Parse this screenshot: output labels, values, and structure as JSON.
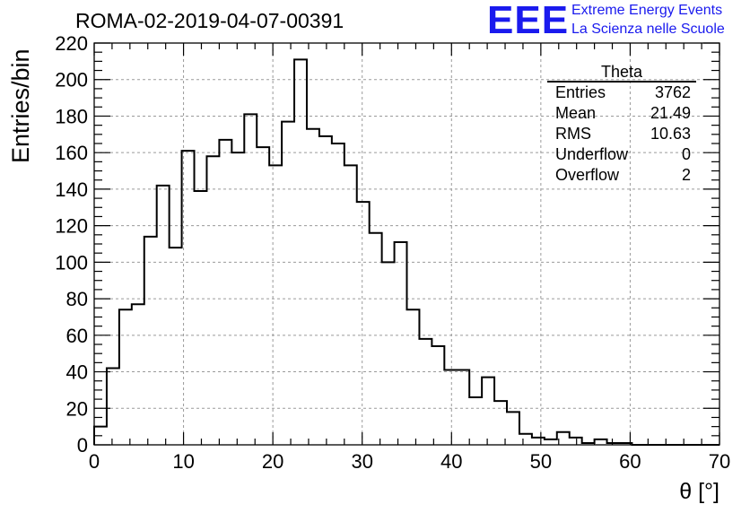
{
  "title": "ROMA-02-2019-04-07-00391",
  "logo": {
    "mark": "EEE",
    "line1": "Extreme Energy Events",
    "line2": "La Scienza nelle Scuole",
    "color": "#1a1aee"
  },
  "stats": {
    "name": "Theta",
    "rows": [
      {
        "label": "Entries",
        "value": "3762"
      },
      {
        "label": "Mean",
        "value": "21.49"
      },
      {
        "label": "RMS",
        "value": "10.63"
      },
      {
        "label": "Underflow",
        "value": "0"
      },
      {
        "label": "Overflow",
        "value": "2"
      }
    ]
  },
  "chart_data": {
    "type": "bar",
    "histogram": true,
    "xlabel": "θ [°]",
    "ylabel": "Entries/bin",
    "xlim": [
      0,
      70
    ],
    "ylim": [
      0,
      220
    ],
    "grid": true,
    "bin_width": 1.4,
    "xticks": [
      0,
      10,
      20,
      30,
      40,
      50,
      60,
      70
    ],
    "yticks": [
      0,
      20,
      40,
      60,
      80,
      100,
      120,
      140,
      160,
      180,
      200,
      220
    ],
    "values": [
      10,
      42,
      74,
      77,
      114,
      142,
      108,
      161,
      139,
      158,
      167,
      160,
      181,
      163,
      153,
      177,
      211,
      173,
      169,
      165,
      153,
      133,
      116,
      100,
      111,
      74,
      58,
      54,
      41,
      41,
      26,
      37,
      24,
      18,
      6,
      4,
      3,
      7,
      4,
      1,
      3,
      1,
      1,
      0,
      0,
      0,
      0,
      0,
      0,
      0
    ]
  }
}
